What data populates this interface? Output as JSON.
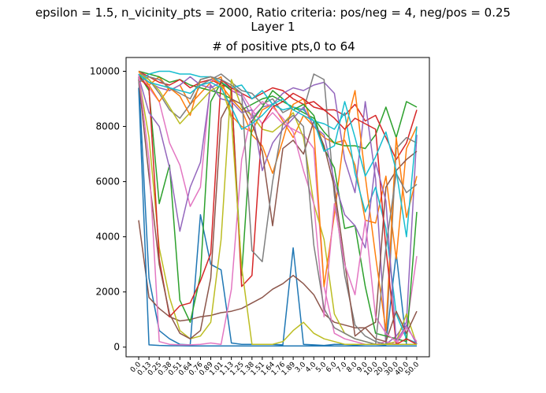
{
  "suptitle": "epsilon = 1.5, n_vicinity_pts = 2000, Ratio criteria: pos/neg = 4, neg/pos = 0.25",
  "subtitle": "Layer 1",
  "axes_title": "# of positive pts,0 to 64",
  "chart_data": {
    "type": "line",
    "title": "# of positive pts,0 to 64",
    "xlabel": "",
    "ylabel": "",
    "ylim": [
      -350,
      10500
    ],
    "yticks": [
      0,
      2000,
      4000,
      6000,
      8000,
      10000
    ],
    "categories": [
      "0.0",
      "0.13",
      "0.25",
      "0.38",
      "0.51",
      "0.64",
      "0.76",
      "0.89",
      "1.01",
      "1.13",
      "1.25",
      "1.38",
      "1.51",
      "1.64",
      "1.76",
      "1.89",
      "3.0",
      "4.0",
      "5.0",
      "6.0",
      "7.0",
      "8.0",
      "9.0",
      "10.0",
      "20.0",
      "30.0",
      "40.0",
      "50.0"
    ],
    "colors": [
      "#1f77b4",
      "#ff7f0e",
      "#2ca02c",
      "#d62728",
      "#9467bd",
      "#8c564b",
      "#e377c2",
      "#7f7f7f",
      "#bcbd22",
      "#17becf"
    ],
    "grid": false,
    "legend": "none",
    "series": [
      {
        "values": [
          9800,
          2500,
          600,
          300,
          100,
          80,
          4800,
          3000,
          2800,
          150,
          100,
          100,
          100,
          100,
          80,
          3600,
          100,
          80,
          60,
          100,
          100,
          80,
          100,
          100,
          80,
          3400,
          100,
          100
        ]
      },
      {
        "values": [
          9700,
          9500,
          9800,
          9300,
          9500,
          8800,
          9200,
          9600,
          9800,
          8400,
          8000,
          7800,
          8600,
          8800,
          8200,
          7600,
          8400,
          8000,
          7600,
          7400,
          7500,
          6600,
          4600,
          4500,
          6200,
          3200,
          7200,
          8000
        ]
      },
      {
        "values": [
          10000,
          9900,
          9800,
          9600,
          9700,
          9500,
          9400,
          9300,
          9200,
          9000,
          8600,
          8800,
          9000,
          9100,
          8900,
          8700,
          8500,
          8300,
          7800,
          7400,
          7300,
          7300,
          7200,
          7700,
          8700,
          7600,
          8900,
          8700
        ]
      },
      {
        "values": [
          10000,
          9800,
          9600,
          9500,
          9700,
          9400,
          9600,
          9700,
          9500,
          9400,
          9200,
          9000,
          9200,
          9400,
          9300,
          9000,
          8800,
          8900,
          8600,
          8600,
          8400,
          8800,
          8200,
          8400,
          7600,
          6800,
          7400,
          8600
        ]
      },
      {
        "values": [
          9900,
          9600,
          9400,
          9300,
          9500,
          9800,
          9500,
          9400,
          9600,
          9300,
          9100,
          8300,
          8700,
          8800,
          9200,
          9400,
          9300,
          9500,
          9600,
          9200,
          6800,
          5600,
          8900,
          6100,
          100,
          400,
          900,
          7700
        ]
      },
      {
        "values": [
          4600,
          1800,
          1400,
          1100,
          950,
          1000,
          1100,
          1150,
          1250,
          1300,
          1400,
          1600,
          1800,
          2100,
          2300,
          2600,
          2300,
          1900,
          1200,
          900,
          800,
          700,
          700,
          900,
          5800,
          6400,
          6800,
          7100
        ]
      },
      {
        "values": [
          9900,
          9400,
          8900,
          7400,
          6600,
          5100,
          5800,
          9700,
          9600,
          9300,
          9200,
          8600,
          8100,
          8500,
          8100,
          7900,
          7700,
          7200,
          2200,
          500,
          300,
          200,
          100,
          100,
          200,
          100,
          700,
          3300
        ]
      },
      {
        "values": [
          10000,
          9700,
          9200,
          8600,
          8300,
          8800,
          9500,
          9700,
          9900,
          9600,
          9300,
          9200,
          8800,
          9000,
          8500,
          8700,
          8600,
          9900,
          9700,
          5500,
          2600,
          800,
          400,
          200,
          100,
          7200,
          7600,
          7400
        ]
      },
      {
        "values": [
          9800,
          7600,
          3600,
          1800,
          600,
          300,
          400,
          900,
          3900,
          9700,
          8700,
          8400,
          7900,
          7800,
          8100,
          8500,
          7600,
          5200,
          3900,
          1200,
          500,
          300,
          200,
          100,
          100,
          200,
          1200,
          100
        ]
      },
      {
        "values": [
          9600,
          9900,
          10000,
          10000,
          9900,
          9900,
          9800,
          9800,
          9600,
          9400,
          9500,
          9000,
          9300,
          8800,
          8600,
          8700,
          8600,
          8200,
          8100,
          7900,
          8500,
          6300,
          4900,
          5800,
          4300,
          1200,
          300,
          150
        ]
      },
      {
        "values": [
          9400,
          80,
          60,
          50,
          50,
          40,
          40,
          40,
          40,
          40,
          40,
          40,
          40,
          40,
          40,
          40,
          40,
          40,
          40,
          40,
          40,
          40,
          40,
          40,
          40,
          40,
          40,
          40
        ]
      },
      {
        "values": [
          10000,
          9500,
          8900,
          9400,
          9100,
          8400,
          9700,
          9800,
          9500,
          9000,
          8600,
          7700,
          7300,
          6300,
          7500,
          8800,
          9000,
          7900,
          2200,
          4800,
          7800,
          9300,
          6200,
          3300,
          600,
          7600,
          4700,
          6200
        ]
      },
      {
        "values": [
          9900,
          9300,
          5200,
          6600,
          1700,
          900,
          2600,
          8900,
          9600,
          9300,
          2600,
          8200,
          8700,
          9300,
          9000,
          8600,
          8800,
          8400,
          7200,
          6500,
          4300,
          4400,
          2200,
          500,
          400,
          300,
          200,
          4900
        ]
      },
      {
        "values": [
          9800,
          9400,
          3200,
          1100,
          1500,
          1600,
          2400,
          3400,
          9700,
          9400,
          2200,
          2600,
          8100,
          8700,
          8900,
          9200,
          9000,
          8700,
          8600,
          8300,
          7900,
          8300,
          8100,
          7900,
          3600,
          100,
          300,
          100
        ]
      },
      {
        "values": [
          9800,
          8500,
          8000,
          6500,
          4200,
          5800,
          6700,
          9500,
          9000,
          8900,
          8500,
          8600,
          6400,
          7400,
          7900,
          8300,
          8700,
          8000,
          7700,
          6000,
          4800,
          4400,
          3600,
          6700,
          5300,
          200,
          800,
          100
        ]
      },
      {
        "values": [
          9700,
          6200,
          3000,
          1200,
          500,
          300,
          600,
          2500,
          8300,
          9000,
          8800,
          8100,
          7100,
          4400,
          7200,
          7500,
          7000,
          8200,
          7300,
          5800,
          3100,
          400,
          700,
          300,
          200,
          1300,
          500,
          1300
        ]
      },
      {
        "values": [
          9900,
          6800,
          200,
          100,
          80,
          80,
          100,
          150,
          100,
          2100,
          6800,
          8500,
          8900,
          8700,
          8300,
          7800,
          6400,
          5200,
          1100,
          5200,
          3000,
          1900,
          4600,
          1100,
          500,
          200,
          700,
          200
        ]
      },
      {
        "values": [
          9600,
          9800,
          9700,
          9400,
          9200,
          9000,
          9700,
          9800,
          9700,
          9500,
          9200,
          3500,
          3100,
          6000,
          8100,
          8400,
          8000,
          3700,
          1400,
          700,
          500,
          300,
          200,
          100,
          3600,
          6300,
          5600,
          5900
        ]
      },
      {
        "values": [
          9900,
          9700,
          9300,
          8700,
          8100,
          8500,
          8900,
          9300,
          9500,
          8300,
          2900,
          100,
          100,
          100,
          200,
          600,
          900,
          500,
          300,
          200,
          100,
          100,
          100,
          100,
          100,
          100,
          100,
          100
        ]
      },
      {
        "values": [
          9900,
          9600,
          9500,
          9400,
          9300,
          9200,
          9500,
          9600,
          9400,
          8700,
          7900,
          8100,
          8400,
          8800,
          9000,
          8600,
          8400,
          8200,
          7100,
          7300,
          8900,
          7600,
          6200,
          6900,
          7800,
          6400,
          4000,
          8000
        ]
      }
    ]
  }
}
